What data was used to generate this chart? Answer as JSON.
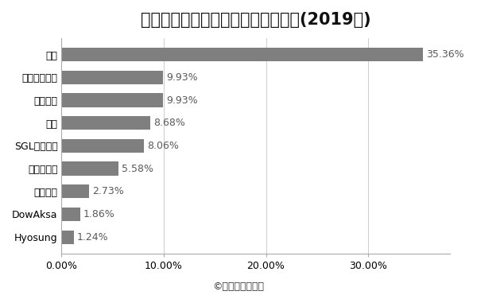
{
  "title": "炭素繊維メーカーの世界市場シェア(2019年)",
  "companies": [
    "東レ",
    "三菱ケミカル",
    "ヘクセル",
    "帝人",
    "SGLカーボン",
    "フォルモサ",
    "ソルベイ",
    "DowAksa",
    "Hyosung"
  ],
  "values": [
    35.36,
    9.93,
    9.93,
    8.68,
    8.06,
    5.58,
    2.73,
    1.86,
    1.24
  ],
  "bar_color": "#7f7f7f",
  "label_color": "#595959",
  "bg_color": "#ffffff",
  "xlim": [
    0,
    38
  ],
  "xlabel_ticks": [
    0,
    10,
    20,
    30
  ],
  "xlabel_labels": [
    "0.00%",
    "10.00%",
    "20.00%",
    "30.00%"
  ],
  "footnote": "©業界再編の動向",
  "title_fontsize": 15,
  "label_fontsize": 9,
  "tick_fontsize": 9,
  "footnote_fontsize": 9
}
